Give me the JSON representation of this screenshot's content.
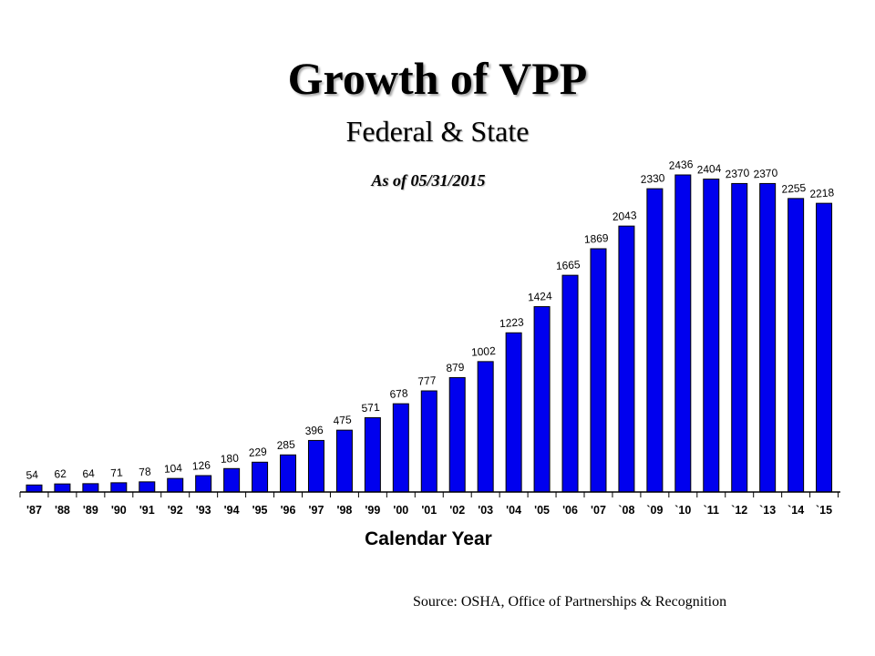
{
  "chart_data": {
    "type": "bar",
    "title": "Growth of VPP",
    "subtitle": "Federal & State",
    "annotation": "As of 05/31/2015",
    "xlabel": "Calendar Year",
    "ylabel": "",
    "source": "Source: OSHA, Office of Partnerships & Recognition",
    "categories": [
      "'87",
      "'88",
      "'89",
      "'90",
      "'91",
      "'92",
      "'93",
      "'94",
      "'95",
      "'96",
      "'97",
      "'98",
      "'99",
      "'00",
      "'01",
      "'02",
      "'03",
      "'04",
      "'05",
      "'06",
      "'07",
      "`08",
      "`09",
      "`10",
      "`11",
      "`12",
      "`13",
      "`14",
      "`15"
    ],
    "values": [
      54,
      62,
      64,
      71,
      78,
      104,
      126,
      180,
      229,
      285,
      396,
      475,
      571,
      678,
      777,
      879,
      1002,
      1223,
      1424,
      1665,
      1869,
      2043,
      2330,
      2436,
      2404,
      2370,
      2370,
      2255,
      2218
    ],
    "data_labels": true,
    "ylim": [
      0,
      2436
    ],
    "grid": false,
    "legend": "none",
    "bar_color": "#0000ee",
    "bar_edge_color": "#000000"
  }
}
